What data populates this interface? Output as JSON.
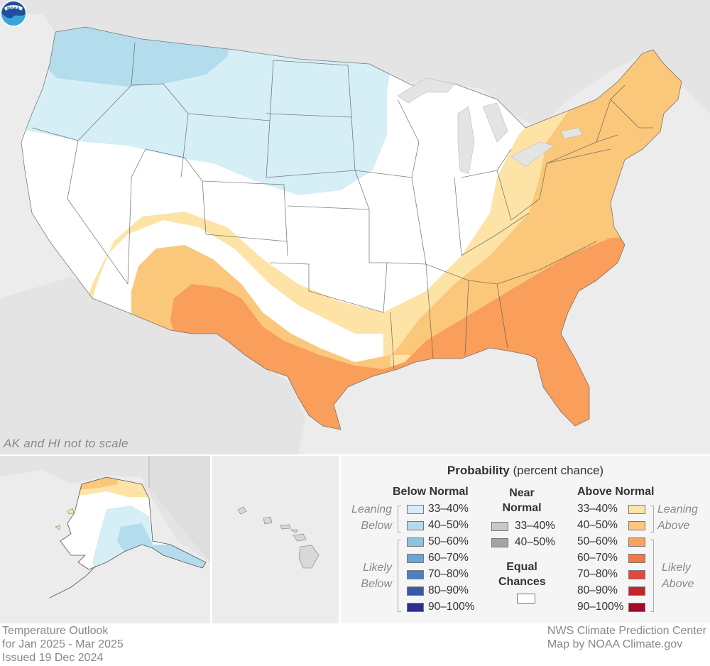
{
  "map": {
    "scale_note": "AK and HI not to scale",
    "logo_text": "NOAA",
    "region": "contiguous-united-states",
    "colors": {
      "ocean_land_background": "#ececec",
      "equal_chances": "#ffffff",
      "below_33_40": "#d6eef6",
      "below_40_50": "#b3dcec",
      "above_33_40": "#fde4a6",
      "above_40_50": "#fbc77a",
      "above_50_60": "#f99e5b"
    }
  },
  "legend": {
    "title_bold": "Probability",
    "title_rest": "(percent chance)",
    "below": {
      "heading": "Below Normal",
      "leaning_label": [
        "Leaning",
        "Below"
      ],
      "likely_label": [
        "Likely",
        "Below"
      ],
      "items": [
        {
          "label": "33–40%",
          "color": "#d7eef7"
        },
        {
          "label": "40–50%",
          "color": "#b2dced"
        },
        {
          "label": "50–60%",
          "color": "#8cc3e0"
        },
        {
          "label": "60–70%",
          "color": "#6aa6d4"
        },
        {
          "label": "70–80%",
          "color": "#4b7fc2"
        },
        {
          "label": "80–90%",
          "color": "#3a58ab"
        },
        {
          "label": "90–100%",
          "color": "#2b2f8f"
        }
      ]
    },
    "near": {
      "heading": [
        "Near",
        "Normal"
      ],
      "items": [
        {
          "label": "33–40%",
          "color": "#c8c8c8"
        },
        {
          "label": "40–50%",
          "color": "#a4a4a4"
        }
      ],
      "equal_heading": [
        "Equal",
        "Chances"
      ],
      "equal_color": "#ffffff"
    },
    "above": {
      "heading": "Above Normal",
      "leaning_label": [
        "Leaning",
        "Above"
      ],
      "likely_label": [
        "Likely",
        "Above"
      ],
      "items": [
        {
          "label": "33–40%",
          "color": "#fde3a6"
        },
        {
          "label": "40–50%",
          "color": "#fcc77b"
        },
        {
          "label": "50–60%",
          "color": "#f9a25e"
        },
        {
          "label": "60–70%",
          "color": "#f37847"
        },
        {
          "label": "70–80%",
          "color": "#e2493a"
        },
        {
          "label": "80–90%",
          "color": "#c4242e"
        },
        {
          "label": "90–100%",
          "color": "#a10a28"
        }
      ]
    }
  },
  "footer": {
    "left": [
      "Temperature Outlook",
      "for Jan 2025 - Mar 2025",
      "Issued 19 Dec 2024"
    ],
    "right": [
      "NWS Climate Prediction Center",
      "Map by NOAA Climate.gov"
    ]
  }
}
